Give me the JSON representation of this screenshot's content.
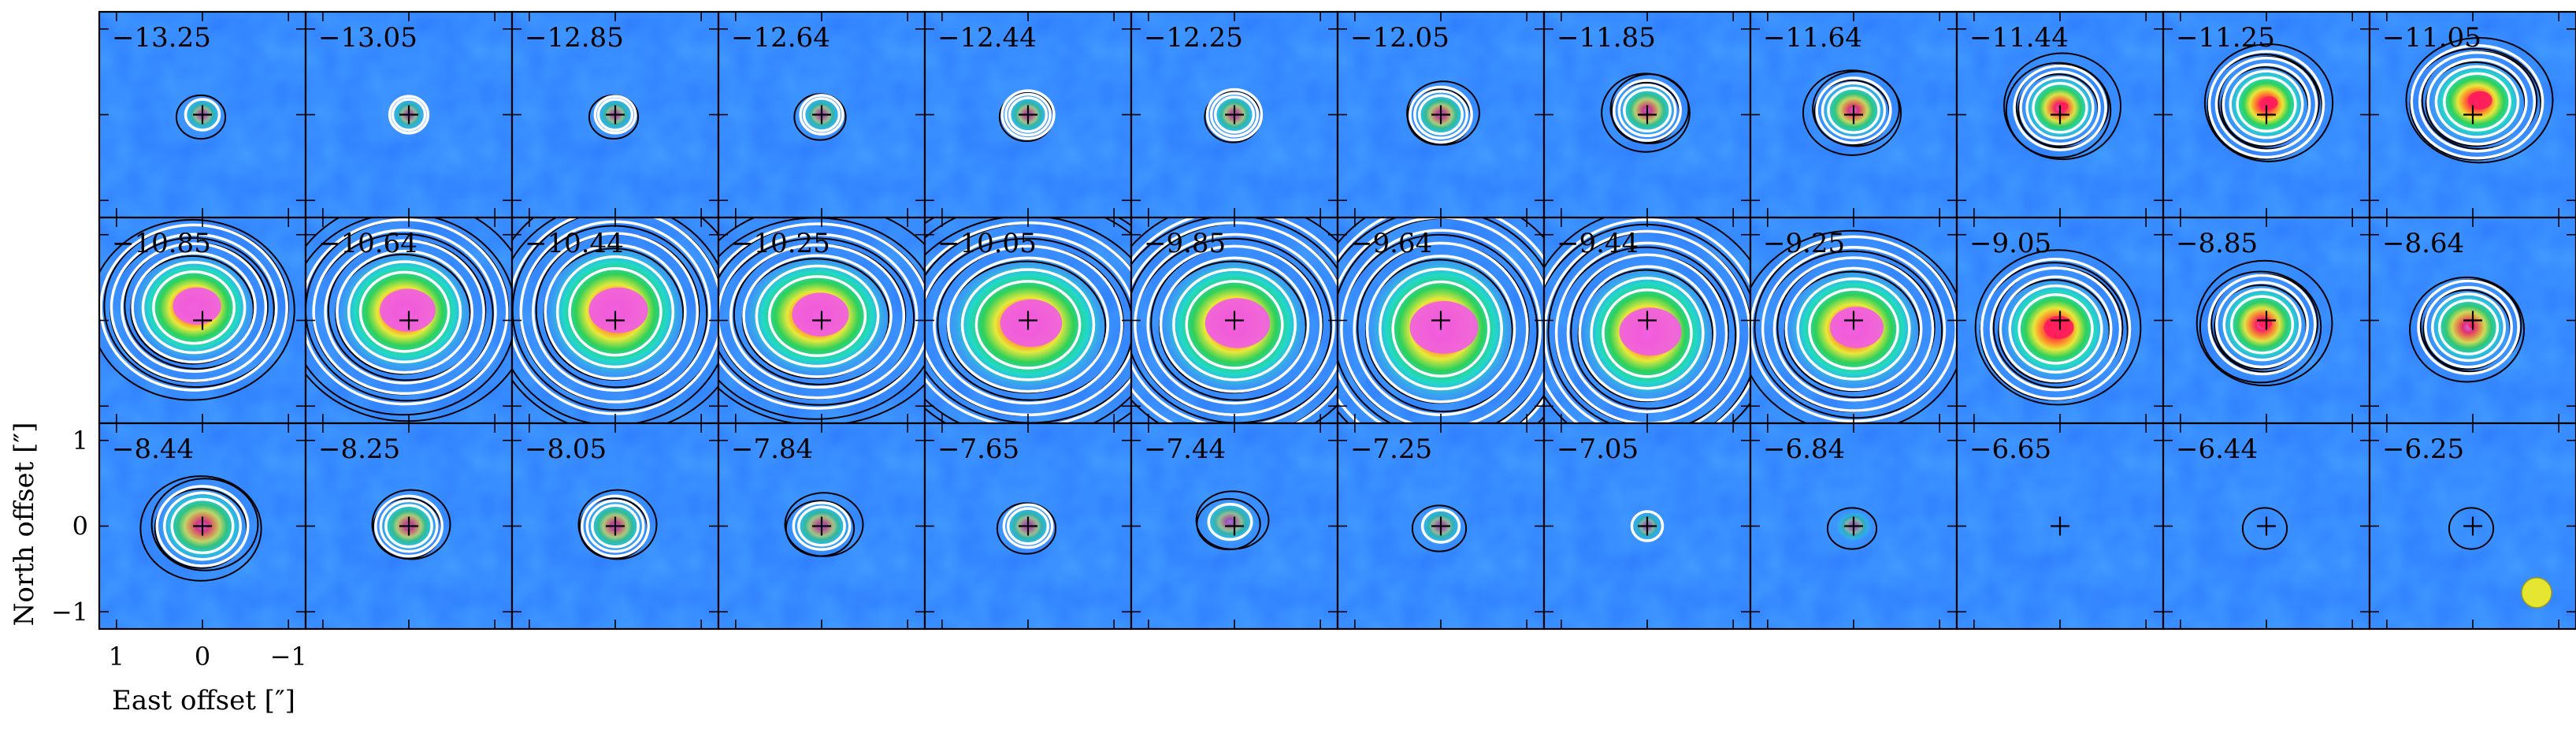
{
  "chart_data": {
    "type": "channel-map",
    "xlabel": "East offset [″]",
    "ylabel": "North offset [″]",
    "x_ticks": [
      "1",
      "0",
      "−1"
    ],
    "y_ticks": [
      "1",
      "0",
      "−1"
    ],
    "x_range_arcsec": [
      1.2,
      -1.2
    ],
    "y_range_arcsec": [
      -1.2,
      1.2
    ],
    "rows": 3,
    "cols": 12,
    "channels": [
      {
        "v": "−13.25",
        "peak": 0.15,
        "sx": 0.14,
        "sy": 0.13,
        "ox": 0.0,
        "oy": 0.0,
        "white": 1,
        "black": 1
      },
      {
        "v": "−13.05",
        "peak": 0.14,
        "sx": 0.13,
        "sy": 0.13,
        "ox": 0.0,
        "oy": 0.0,
        "white": 2,
        "black": 0
      },
      {
        "v": "−12.85",
        "peak": 0.16,
        "sx": 0.14,
        "sy": 0.13,
        "ox": 0.0,
        "oy": 0.0,
        "white": 2,
        "black": 1
      },
      {
        "v": "−12.64",
        "peak": 0.17,
        "sx": 0.15,
        "sy": 0.14,
        "ox": 0.0,
        "oy": 0.0,
        "white": 2,
        "black": 1
      },
      {
        "v": "−12.44",
        "peak": 0.22,
        "sx": 0.16,
        "sy": 0.15,
        "ox": 0.0,
        "oy": 0.0,
        "white": 3,
        "black": 1
      },
      {
        "v": "−12.25",
        "peak": 0.24,
        "sx": 0.17,
        "sy": 0.16,
        "ox": 0.0,
        "oy": 0.0,
        "white": 3,
        "black": 1
      },
      {
        "v": "−12.05",
        "peak": 0.3,
        "sx": 0.2,
        "sy": 0.18,
        "ox": 0.0,
        "oy": 0.0,
        "white": 3,
        "black": 2
      },
      {
        "v": "−11.85",
        "peak": 0.36,
        "sx": 0.22,
        "sy": 0.2,
        "ox": 0.0,
        "oy": 0.05,
        "white": 3,
        "black": 3
      },
      {
        "v": "−11.64",
        "peak": 0.45,
        "sx": 0.25,
        "sy": 0.22,
        "ox": 0.0,
        "oy": 0.05,
        "white": 3,
        "black": 3
      },
      {
        "v": "−11.44",
        "peak": 0.58,
        "sx": 0.27,
        "sy": 0.25,
        "ox": 0.0,
        "oy": 0.08,
        "white": 4,
        "black": 4
      },
      {
        "v": "−11.25",
        "peak": 0.66,
        "sx": 0.3,
        "sy": 0.28,
        "ox": 0.0,
        "oy": 0.12,
        "white": 5,
        "black": 4
      },
      {
        "v": "−11.05",
        "peak": 0.72,
        "sx": 0.35,
        "sy": 0.3,
        "ox": -0.05,
        "oy": 0.15,
        "white": 5,
        "black": 4
      },
      {
        "v": "−10.85",
        "peak": 0.9,
        "sx": 0.45,
        "sy": 0.4,
        "ox": 0.1,
        "oy": 0.15,
        "white": 6,
        "black": 5
      },
      {
        "v": "−10.64",
        "peak": 0.92,
        "sx": 0.5,
        "sy": 0.45,
        "ox": 0.05,
        "oy": 0.1,
        "white": 6,
        "black": 6
      },
      {
        "v": "−10.44",
        "peak": 0.93,
        "sx": 0.52,
        "sy": 0.5,
        "ox": 0.0,
        "oy": 0.1,
        "white": 6,
        "black": 6
      },
      {
        "v": "−10.25",
        "peak": 0.88,
        "sx": 0.55,
        "sy": 0.45,
        "ox": 0.05,
        "oy": 0.05,
        "white": 6,
        "black": 6
      },
      {
        "v": "−10.05",
        "peak": 0.88,
        "sx": 0.6,
        "sy": 0.5,
        "ox": 0.0,
        "oy": -0.05,
        "white": 6,
        "black": 7
      },
      {
        "v": "−9.85",
        "peak": 0.95,
        "sx": 0.55,
        "sy": 0.5,
        "ox": 0.0,
        "oy": -0.05,
        "white": 7,
        "black": 6
      },
      {
        "v": "−9.64",
        "peak": 0.98,
        "sx": 0.55,
        "sy": 0.55,
        "ox": 0.0,
        "oy": -0.1,
        "white": 7,
        "black": 6
      },
      {
        "v": "−9.44",
        "peak": 0.98,
        "sx": 0.5,
        "sy": 0.5,
        "ox": 0.0,
        "oy": -0.15,
        "white": 7,
        "black": 6
      },
      {
        "v": "−9.25",
        "peak": 0.9,
        "sx": 0.5,
        "sy": 0.45,
        "ox": 0.0,
        "oy": -0.1,
        "white": 6,
        "black": 5
      },
      {
        "v": "−9.05",
        "peak": 0.75,
        "sx": 0.4,
        "sy": 0.38,
        "ox": 0.05,
        "oy": -0.1,
        "white": 5,
        "black": 4
      },
      {
        "v": "−8.85",
        "peak": 0.6,
        "sx": 0.32,
        "sy": 0.3,
        "ox": 0.05,
        "oy": -0.05,
        "white": 4,
        "black": 4
      },
      {
        "v": "−8.64",
        "peak": 0.5,
        "sx": 0.3,
        "sy": 0.28,
        "ox": 0.05,
        "oy": -0.08,
        "white": 4,
        "black": 3
      },
      {
        "v": "−8.44",
        "peak": 0.42,
        "sx": 0.32,
        "sy": 0.28,
        "ox": 0.0,
        "oy": 0.0,
        "white": 3,
        "black": 3
      },
      {
        "v": "−8.25",
        "peak": 0.32,
        "sx": 0.22,
        "sy": 0.2,
        "ox": 0.0,
        "oy": 0.0,
        "white": 3,
        "black": 2
      },
      {
        "v": "−8.05",
        "peak": 0.3,
        "sx": 0.22,
        "sy": 0.2,
        "ox": 0.0,
        "oy": 0.0,
        "white": 3,
        "black": 2
      },
      {
        "v": "−7.84",
        "peak": 0.24,
        "sx": 0.22,
        "sy": 0.18,
        "ox": 0.0,
        "oy": 0.0,
        "white": 2,
        "black": 2
      },
      {
        "v": "−7.65",
        "peak": 0.18,
        "sx": 0.18,
        "sy": 0.16,
        "ox": 0.0,
        "oy": 0.0,
        "white": 2,
        "black": 1
      },
      {
        "v": "−7.44",
        "peak": 0.16,
        "sx": 0.2,
        "sy": 0.16,
        "ox": 0.05,
        "oy": 0.05,
        "white": 1,
        "black": 2
      },
      {
        "v": "−7.25",
        "peak": 0.14,
        "sx": 0.16,
        "sy": 0.14,
        "ox": 0.0,
        "oy": 0.0,
        "white": 1,
        "black": 1
      },
      {
        "v": "−7.05",
        "peak": 0.08,
        "sx": 0.12,
        "sy": 0.12,
        "ox": 0.0,
        "oy": 0.0,
        "white": 1,
        "black": 0
      },
      {
        "v": "−6.84",
        "peak": 0.07,
        "sx": 0.14,
        "sy": 0.12,
        "ox": 0.0,
        "oy": 0.0,
        "white": 0,
        "black": 1
      },
      {
        "v": "−6.65",
        "peak": 0.04,
        "sx": 0.12,
        "sy": 0.12,
        "ox": 0.0,
        "oy": 0.0,
        "white": 0,
        "black": 0
      },
      {
        "v": "−6.44",
        "peak": 0.04,
        "sx": 0.12,
        "sy": 0.12,
        "ox": 0.0,
        "oy": 0.0,
        "white": 0,
        "black": 1
      },
      {
        "v": "−6.25",
        "peak": 0.03,
        "sx": 0.12,
        "sy": 0.12,
        "ox": 0.0,
        "oy": 0.0,
        "white": 0,
        "black": 1
      }
    ],
    "colors": {
      "background": "#2e7bff",
      "low": "#3aa0f0",
      "mid": "#22d8c8",
      "green": "#2fd05a",
      "yellow": "#e8e83a",
      "orange": "#ff8a2a",
      "red": "#ff1e5a",
      "peak": "#f060e0",
      "white_contour": "#ffffff",
      "black_contour": "#000000",
      "beam": "#e6e632"
    },
    "beam_panel": 35
  }
}
